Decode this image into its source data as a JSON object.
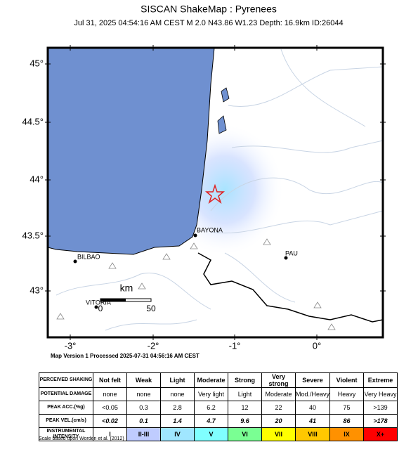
{
  "header": {
    "title": "SISCAN ShakeMap : Pyrenees",
    "subtitle": "Jul 31, 2025 04:54:16 AM CEST   M 2.0   N43.86 W1.23   Depth: 16.9km   ID:26044"
  },
  "map": {
    "lat_labels": [
      "45°",
      "44.5°",
      "44°",
      "43.5°",
      "43°"
    ],
    "lon_labels": [
      "-3°",
      "-2°",
      "-1°",
      "0°"
    ],
    "places": [
      "BILBAO",
      "BAYONA",
      "PAU",
      "VITORIA"
    ],
    "scale_bar": {
      "unit": "km",
      "start": "0",
      "end": "50"
    },
    "footer": "Map Version 1 Processed 2025-07-31 04:56:16 AM CEST"
  },
  "legend": {
    "rows": [
      {
        "label": "PERCEIVED SHAKING",
        "cells": [
          "Not felt",
          "Weak",
          "Light",
          "Moderate",
          "Strong",
          "Very strong",
          "Severe",
          "Violent",
          "Extreme"
        ]
      },
      {
        "label": "POTENTIAL DAMAGE",
        "cells": [
          "none",
          "none",
          "none",
          "Very light",
          "Light",
          "Moderate",
          "Mod./Heavy",
          "Heavy",
          "Very Heavy"
        ]
      },
      {
        "label": "PEAK ACC.(%g)",
        "cells": [
          "<0.05",
          "0.3",
          "2.8",
          "6.2",
          "12",
          "22",
          "40",
          "75",
          ">139"
        ]
      },
      {
        "label": "PEAK VEL.(cm/s)",
        "cells": [
          "<0.02",
          "0.1",
          "1.4",
          "4.7",
          "9.6",
          "20",
          "41",
          "86",
          ">178"
        ]
      },
      {
        "label": "INSTRUMENTAL INTENSITY",
        "cells": [
          "I",
          "II-III",
          "IV",
          "V",
          "VI",
          "VII",
          "VIII",
          "IX",
          "X+"
        ]
      }
    ],
    "note": "Scale based upon Worden et al. (2012)"
  }
}
